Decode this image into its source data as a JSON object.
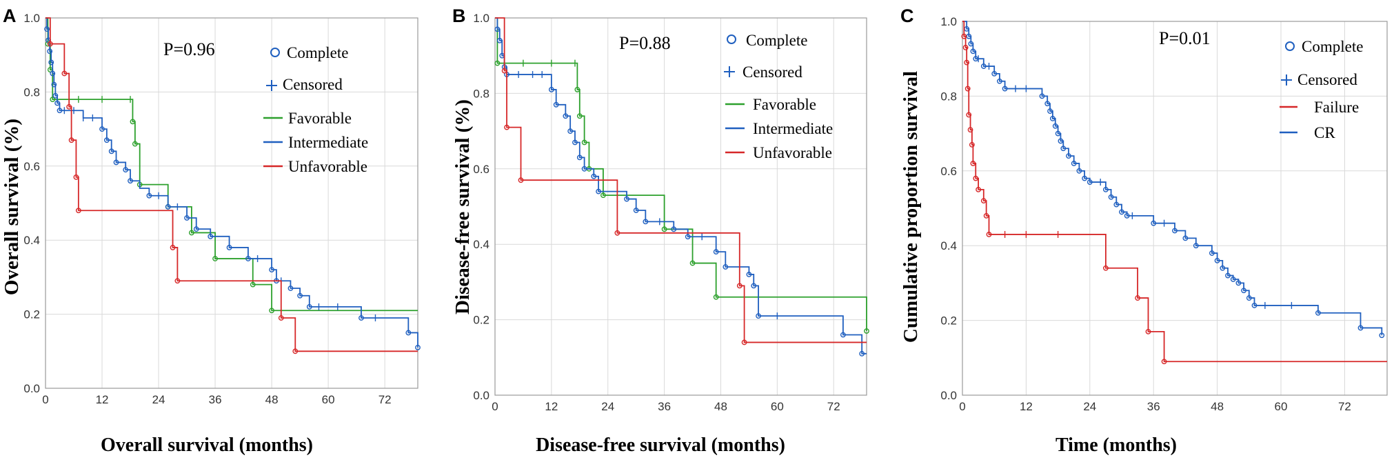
{
  "chart_data": [
    {
      "type": "line",
      "panel_label": "A",
      "ylabel": "Overall survival (%)",
      "xlabel": "Overall survival (months)",
      "annotation": "P=0.96",
      "xlim": [
        0,
        79
      ],
      "ylim": [
        0,
        1.0
      ],
      "xticks": [
        0,
        12,
        24,
        36,
        48,
        60,
        72
      ],
      "yticks": [
        0.0,
        0.2,
        0.4,
        0.6,
        0.8,
        1.0
      ],
      "ytick_labels": [
        "0.0",
        "0.2",
        "0.4",
        "0.6",
        "0.8",
        "1.0"
      ],
      "legend_markers": [
        {
          "label": "Complete",
          "symbol": "circle"
        },
        {
          "label": "Censored",
          "symbol": "plus"
        }
      ],
      "legend": [
        {
          "label": "Favorable",
          "color": "#2ca02c"
        },
        {
          "label": "Intermediate",
          "color": "#1f5fbf"
        },
        {
          "label": "Unfavorable",
          "color": "#d62728"
        }
      ],
      "series": [
        {
          "name": "Favorable",
          "color": "#2ca02c",
          "steps": [
            [
              0,
              1.0
            ],
            [
              0.5,
              0.93
            ],
            [
              1,
              0.86
            ],
            [
              1.5,
              0.78
            ],
            [
              18.5,
              0.72
            ],
            [
              19,
              0.66
            ],
            [
              20,
              0.55
            ],
            [
              22,
              0.55
            ],
            [
              26,
              0.49
            ],
            [
              31,
              0.42
            ],
            [
              36,
              0.35
            ],
            [
              44,
              0.28
            ],
            [
              48,
              0.21
            ],
            [
              79,
              0.21
            ]
          ],
          "events": [
            0.5,
            1,
            1.5,
            18.5,
            19,
            20,
            26,
            31,
            36,
            44,
            48
          ],
          "censored": [
            7,
            12,
            18
          ]
        },
        {
          "name": "Intermediate",
          "color": "#1f5fbf",
          "steps": [
            [
              0,
              1.0
            ],
            [
              0.3,
              0.97
            ],
            [
              0.6,
              0.94
            ],
            [
              0.9,
              0.91
            ],
            [
              1.2,
              0.88
            ],
            [
              1.5,
              0.85
            ],
            [
              1.8,
              0.82
            ],
            [
              2.1,
              0.79
            ],
            [
              2.5,
              0.77
            ],
            [
              3,
              0.75
            ],
            [
              8,
              0.73
            ],
            [
              12,
              0.7
            ],
            [
              13,
              0.67
            ],
            [
              14,
              0.64
            ],
            [
              15,
              0.61
            ],
            [
              17,
              0.59
            ],
            [
              18,
              0.56
            ],
            [
              20,
              0.54
            ],
            [
              22,
              0.52
            ],
            [
              26,
              0.49
            ],
            [
              30,
              0.46
            ],
            [
              32,
              0.43
            ],
            [
              35,
              0.41
            ],
            [
              39,
              0.38
            ],
            [
              43,
              0.35
            ],
            [
              48,
              0.32
            ],
            [
              49,
              0.29
            ],
            [
              52,
              0.27
            ],
            [
              54,
              0.25
            ],
            [
              56,
              0.22
            ],
            [
              67,
              0.19
            ],
            [
              77,
              0.15
            ],
            [
              79,
              0.11
            ]
          ],
          "events": [
            0.3,
            0.6,
            0.9,
            1.2,
            1.5,
            1.8,
            2.1,
            2.5,
            3,
            12,
            13,
            14,
            15,
            17,
            18,
            22,
            26,
            30,
            32,
            35,
            39,
            43,
            48,
            49,
            52,
            54,
            56,
            67,
            77,
            79
          ],
          "censored": [
            4,
            6,
            8,
            10,
            24,
            28,
            45,
            50,
            58,
            62,
            70
          ]
        },
        {
          "name": "Unfavorable",
          "color": "#d62728",
          "steps": [
            [
              0,
              1.0
            ],
            [
              1,
              0.93
            ],
            [
              4,
              0.85
            ],
            [
              5,
              0.76
            ],
            [
              5.5,
              0.67
            ],
            [
              6.5,
              0.57
            ],
            [
              7,
              0.48
            ],
            [
              27,
              0.38
            ],
            [
              28,
              0.29
            ],
            [
              50,
              0.19
            ],
            [
              53,
              0.1
            ],
            [
              79,
              0.1
            ]
          ],
          "events": [
            1,
            4,
            5,
            5.5,
            6.5,
            7,
            27,
            28,
            50,
            53
          ],
          "censored": []
        }
      ]
    },
    {
      "type": "line",
      "panel_label": "B",
      "ylabel": "Disease-free survival (%)",
      "xlabel": "Disease-free survival (months)",
      "annotation": "P=0.88",
      "xlim": [
        0,
        79
      ],
      "ylim": [
        0,
        1.0
      ],
      "xticks": [
        0,
        12,
        24,
        36,
        48,
        60,
        72
      ],
      "yticks": [
        0.0,
        0.2,
        0.4,
        0.6,
        0.8,
        1.0
      ],
      "ytick_labels": [
        "0.0",
        "0.2",
        "0.4",
        "0.6",
        "0.8",
        "1.0"
      ],
      "legend_markers": [
        {
          "label": "Complete",
          "symbol": "circle"
        },
        {
          "label": "Censored",
          "symbol": "plus"
        }
      ],
      "legend": [
        {
          "label": "Favorable",
          "color": "#2ca02c"
        },
        {
          "label": "Intermediate",
          "color": "#1f5fbf"
        },
        {
          "label": "Unfavorable",
          "color": "#d62728"
        }
      ],
      "series": [
        {
          "name": "Favorable",
          "color": "#2ca02c",
          "steps": [
            [
              0,
              1.0
            ],
            [
              0.5,
              0.88
            ],
            [
              17.5,
              0.81
            ],
            [
              18,
              0.74
            ],
            [
              19,
              0.67
            ],
            [
              20,
              0.6
            ],
            [
              23,
              0.53
            ],
            [
              36,
              0.44
            ],
            [
              42,
              0.35
            ],
            [
              47,
              0.26
            ],
            [
              78,
              0.26
            ],
            [
              79,
              0.17
            ]
          ],
          "events": [
            0.5,
            17.5,
            18,
            19,
            20,
            23,
            36,
            42,
            47,
            79
          ],
          "censored": [
            6,
            12,
            17
          ]
        },
        {
          "name": "Intermediate",
          "color": "#1f5fbf",
          "steps": [
            [
              0,
              1.0
            ],
            [
              0.5,
              0.97
            ],
            [
              1,
              0.94
            ],
            [
              1.5,
              0.9
            ],
            [
              2,
              0.87
            ],
            [
              2.5,
              0.85
            ],
            [
              12,
              0.81
            ],
            [
              13,
              0.77
            ],
            [
              15,
              0.74
            ],
            [
              16,
              0.7
            ],
            [
              17,
              0.67
            ],
            [
              18,
              0.63
            ],
            [
              19,
              0.6
            ],
            [
              21,
              0.58
            ],
            [
              22,
              0.54
            ],
            [
              28,
              0.52
            ],
            [
              30,
              0.49
            ],
            [
              32,
              0.46
            ],
            [
              38,
              0.44
            ],
            [
              41,
              0.42
            ],
            [
              47,
              0.38
            ],
            [
              49,
              0.34
            ],
            [
              54,
              0.32
            ],
            [
              55,
              0.29
            ],
            [
              56,
              0.21
            ],
            [
              74,
              0.16
            ],
            [
              78,
              0.11
            ],
            [
              79,
              0.11
            ]
          ],
          "events": [
            0.5,
            1,
            1.5,
            2,
            2.5,
            12,
            13,
            15,
            16,
            17,
            18,
            19,
            21,
            22,
            28,
            30,
            32,
            38,
            41,
            47,
            49,
            54,
            55,
            56,
            74,
            78
          ],
          "censored": [
            5,
            8,
            10,
            35,
            44,
            60
          ]
        },
        {
          "name": "Unfavorable",
          "color": "#d62728",
          "steps": [
            [
              0,
              1.0
            ],
            [
              2,
              0.86
            ],
            [
              2.5,
              0.71
            ],
            [
              5.5,
              0.57
            ],
            [
              26,
              0.43
            ],
            [
              52,
              0.29
            ],
            [
              53,
              0.14
            ],
            [
              79,
              0.14
            ]
          ],
          "events": [
            2,
            2.5,
            5.5,
            26,
            52,
            53
          ],
          "censored": []
        }
      ]
    },
    {
      "type": "line",
      "panel_label": "C",
      "ylabel": "Cumulative proportion survival",
      "xlabel": "Time (months)",
      "annotation": "P=0.01",
      "xlim": [
        0,
        80
      ],
      "ylim": [
        0,
        1.0
      ],
      "xticks": [
        0,
        12,
        24,
        36,
        48,
        60,
        72
      ],
      "yticks": [
        0.0,
        0.2,
        0.4,
        0.6,
        0.8,
        1.0
      ],
      "ytick_labels": [
        "0.0",
        "0.2",
        "0.4",
        "0.6",
        "0.8",
        "1.0"
      ],
      "legend_markers": [
        {
          "label": "Complete",
          "symbol": "circle"
        },
        {
          "label": "Censored",
          "symbol": "plus"
        }
      ],
      "legend": [
        {
          "label": "Failure",
          "color": "#d62728"
        },
        {
          "label": "CR",
          "color": "#1f5fbf"
        }
      ],
      "series": [
        {
          "name": "CR",
          "color": "#1f5fbf",
          "steps": [
            [
              0,
              1.0
            ],
            [
              0.8,
              0.98
            ],
            [
              1.2,
              0.96
            ],
            [
              1.6,
              0.94
            ],
            [
              2,
              0.92
            ],
            [
              2.5,
              0.9
            ],
            [
              4,
              0.88
            ],
            [
              6,
              0.86
            ],
            [
              7,
              0.84
            ],
            [
              8,
              0.82
            ],
            [
              15,
              0.8
            ],
            [
              16,
              0.78
            ],
            [
              16.5,
              0.76
            ],
            [
              17,
              0.74
            ],
            [
              17.5,
              0.72
            ],
            [
              18,
              0.7
            ],
            [
              18.5,
              0.68
            ],
            [
              19,
              0.66
            ],
            [
              20,
              0.64
            ],
            [
              21,
              0.62
            ],
            [
              22,
              0.6
            ],
            [
              23,
              0.58
            ],
            [
              24,
              0.57
            ],
            [
              27,
              0.55
            ],
            [
              28,
              0.53
            ],
            [
              29,
              0.51
            ],
            [
              30,
              0.49
            ],
            [
              31,
              0.48
            ],
            [
              36,
              0.46
            ],
            [
              40,
              0.44
            ],
            [
              42,
              0.42
            ],
            [
              44,
              0.4
            ],
            [
              47,
              0.38
            ],
            [
              48,
              0.36
            ],
            [
              49,
              0.34
            ],
            [
              50,
              0.32
            ],
            [
              51,
              0.31
            ],
            [
              52,
              0.3
            ],
            [
              53,
              0.28
            ],
            [
              54,
              0.26
            ],
            [
              55,
              0.24
            ],
            [
              67,
              0.22
            ],
            [
              75,
              0.18
            ],
            [
              79,
              0.16
            ]
          ],
          "events": [
            0.8,
            1.2,
            1.6,
            2,
            2.5,
            4,
            6,
            7,
            8,
            15,
            16,
            16.5,
            17,
            17.5,
            18,
            18.5,
            19,
            20,
            21,
            22,
            23,
            24,
            27,
            28,
            29,
            30,
            31,
            36,
            40,
            42,
            44,
            47,
            48,
            49,
            50,
            51,
            52,
            53,
            54,
            55,
            67,
            75,
            79
          ],
          "censored": [
            3,
            5,
            10,
            12,
            26,
            32,
            38,
            57,
            62
          ]
        },
        {
          "name": "Failure",
          "color": "#d62728",
          "steps": [
            [
              0,
              1.0
            ],
            [
              0.3,
              0.96
            ],
            [
              0.6,
              0.93
            ],
            [
              0.8,
              0.89
            ],
            [
              1,
              0.82
            ],
            [
              1.2,
              0.75
            ],
            [
              1.5,
              0.71
            ],
            [
              1.8,
              0.67
            ],
            [
              2,
              0.62
            ],
            [
              2.5,
              0.58
            ],
            [
              3,
              0.55
            ],
            [
              4,
              0.52
            ],
            [
              4.5,
              0.48
            ],
            [
              5,
              0.43
            ],
            [
              27,
              0.34
            ],
            [
              33,
              0.26
            ],
            [
              35,
              0.17
            ],
            [
              38,
              0.09
            ],
            [
              80,
              0.09
            ]
          ],
          "events": [
            0.3,
            0.6,
            0.8,
            1,
            1.2,
            1.5,
            1.8,
            2,
            2.5,
            3,
            4,
            4.5,
            5,
            27,
            33,
            35,
            38
          ],
          "censored": [
            8,
            12,
            18
          ]
        }
      ]
    }
  ]
}
